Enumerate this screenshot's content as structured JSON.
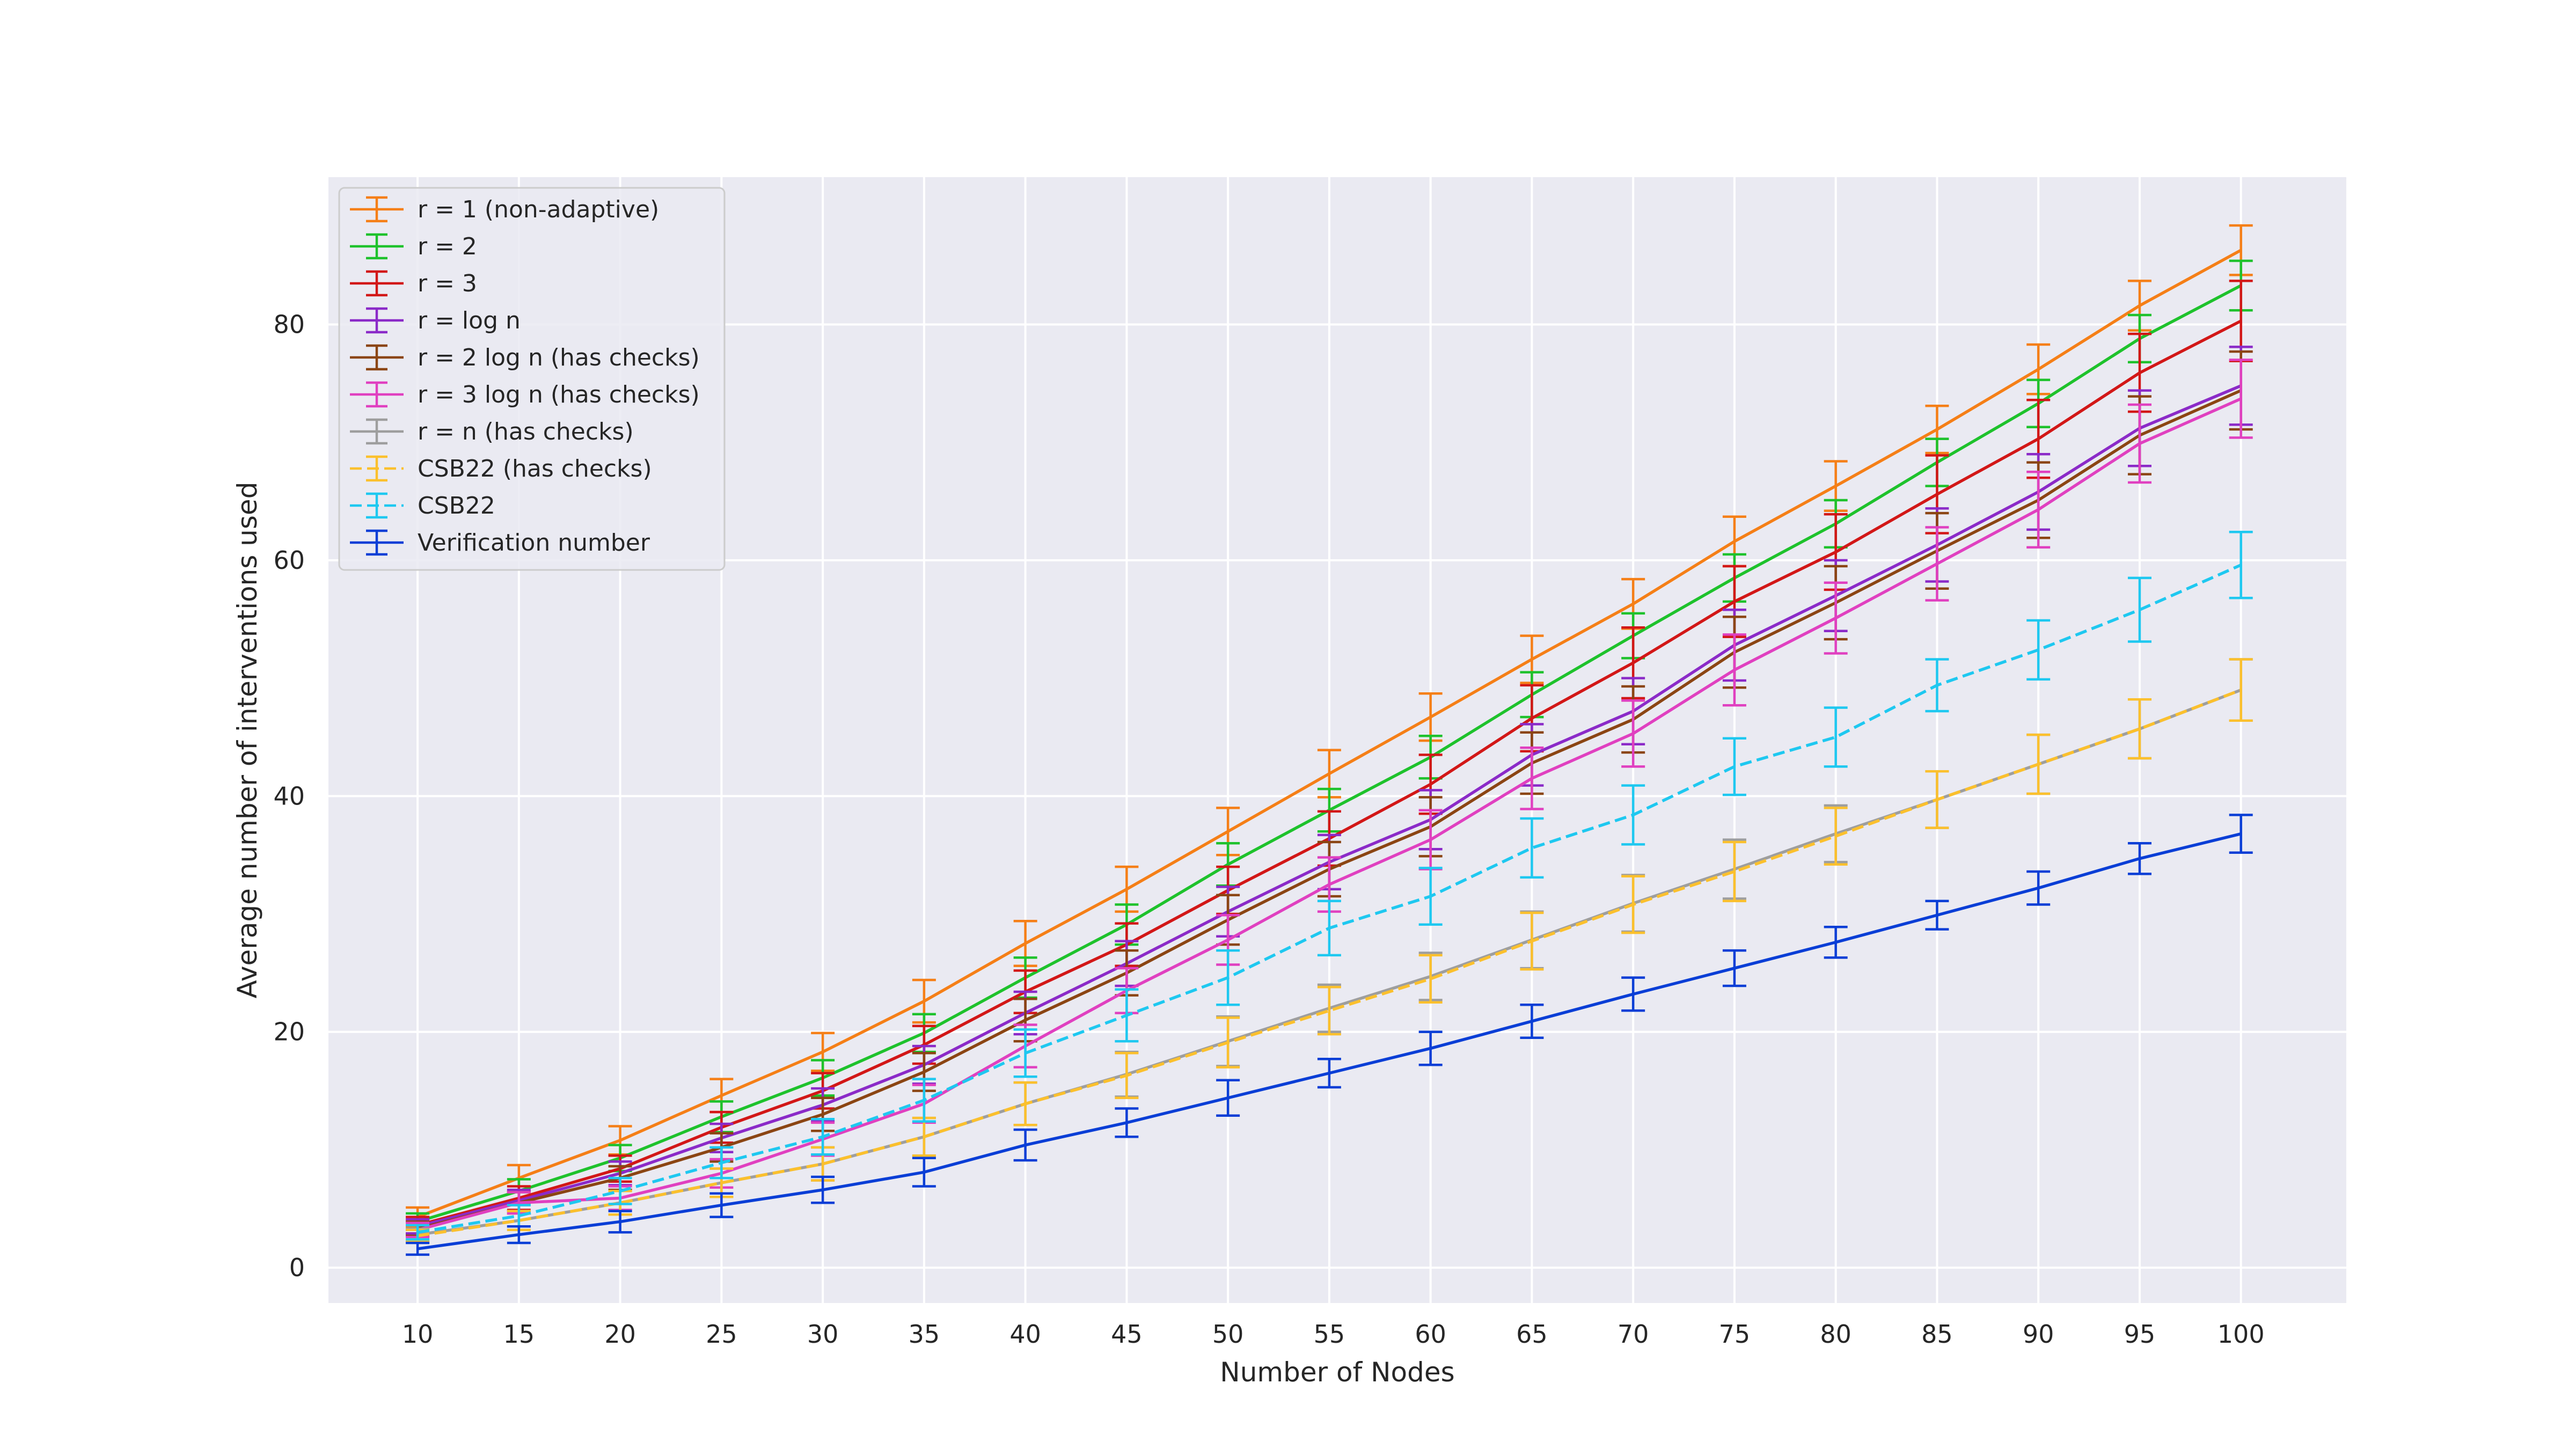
{
  "chart_data": {
    "type": "line",
    "title": "",
    "xlabel": "Number of Nodes",
    "ylabel": "Average number of interventions used",
    "x": [
      10,
      15,
      20,
      25,
      30,
      35,
      40,
      45,
      50,
      55,
      60,
      65,
      70,
      75,
      80,
      85,
      90,
      95,
      100
    ],
    "xlim": [
      5.6,
      105.2
    ],
    "ylim": [
      -3,
      92.5
    ],
    "yticks": [
      0,
      20,
      40,
      60,
      80
    ],
    "grid": true,
    "legend_position": "upper-left",
    "series": [
      {
        "name": "r = 1 (non-adaptive)",
        "color": "#f57f17",
        "dash": "solid",
        "values": [
          4.3,
          7.6,
          10.8,
          14.6,
          18.3,
          22.6,
          27.5,
          32.1,
          37.0,
          41.9,
          46.7,
          51.6,
          56.3,
          61.6,
          66.3,
          71.1,
          76.2,
          81.6,
          86.3
        ],
        "errors": [
          0.8,
          1.1,
          1.2,
          1.4,
          1.6,
          1.8,
          1.9,
          1.9,
          2.0,
          2.0,
          2.0,
          2.0,
          2.1,
          2.1,
          2.1,
          2.0,
          2.1,
          2.1,
          2.1
        ]
      },
      {
        "name": "r = 2",
        "color": "#1ec22c",
        "dash": "solid",
        "values": [
          3.9,
          6.5,
          9.3,
          12.8,
          16.1,
          19.9,
          24.6,
          29.1,
          34.2,
          38.8,
          43.3,
          48.6,
          53.6,
          58.5,
          63.1,
          68.3,
          73.3,
          78.8,
          83.3
        ],
        "errors": [
          0.7,
          1.0,
          1.1,
          1.3,
          1.5,
          1.6,
          1.7,
          1.7,
          1.8,
          1.8,
          1.8,
          1.9,
          1.9,
          2.0,
          2.0,
          2.0,
          2.0,
          2.0,
          2.1
        ]
      },
      {
        "name": "r = 3",
        "color": "#d21717",
        "dash": "solid",
        "values": [
          3.6,
          5.9,
          8.4,
          11.9,
          15.0,
          18.9,
          23.4,
          27.4,
          32.0,
          36.4,
          41.0,
          46.6,
          51.3,
          56.5,
          60.7,
          65.6,
          70.3,
          75.9,
          80.3
        ],
        "errors": [
          0.7,
          1.0,
          1.1,
          1.3,
          1.5,
          1.6,
          1.8,
          1.8,
          2.0,
          2.3,
          2.5,
          2.8,
          3.0,
          3.0,
          3.2,
          3.3,
          3.3,
          3.3,
          3.4
        ]
      },
      {
        "name": "r = log n",
        "color": "#8b2ac8",
        "dash": "solid",
        "values": [
          3.5,
          5.7,
          8.0,
          11.0,
          13.8,
          17.2,
          21.6,
          25.8,
          30.2,
          34.4,
          38.0,
          43.5,
          47.2,
          52.8,
          57.0,
          61.3,
          65.8,
          71.2,
          74.8
        ],
        "errors": [
          0.6,
          0.9,
          1.0,
          1.2,
          1.4,
          1.6,
          1.8,
          1.9,
          2.1,
          2.3,
          2.5,
          2.6,
          2.8,
          3.0,
          3.0,
          3.1,
          3.2,
          3.2,
          3.3
        ]
      },
      {
        "name": "r = 2 log n (has checks)",
        "color": "#8b4513",
        "dash": "solid",
        "values": [
          3.3,
          5.5,
          7.6,
          10.2,
          13.0,
          16.6,
          21.0,
          25.0,
          29.5,
          33.8,
          37.4,
          42.8,
          46.5,
          52.2,
          56.4,
          60.8,
          65.1,
          70.6,
          74.4
        ],
        "errors": [
          0.6,
          0.9,
          1.0,
          1.2,
          1.4,
          1.6,
          1.8,
          1.9,
          2.1,
          2.3,
          2.5,
          2.6,
          2.8,
          3.0,
          3.1,
          3.2,
          3.2,
          3.3,
          3.3
        ]
      },
      {
        "name": "r = 3 log n (has checks)",
        "color": "#e040c0",
        "dash": "solid",
        "values": [
          3.2,
          5.5,
          5.9,
          8.0,
          10.9,
          13.9,
          18.8,
          23.5,
          27.8,
          32.5,
          36.3,
          41.5,
          45.3,
          50.7,
          55.1,
          59.7,
          64.3,
          69.9,
          73.7
        ],
        "errors": [
          0.6,
          0.9,
          1.0,
          1.2,
          1.4,
          1.6,
          1.8,
          1.9,
          2.1,
          2.3,
          2.5,
          2.6,
          2.8,
          3.0,
          3.0,
          3.1,
          3.2,
          3.3,
          3.3
        ]
      },
      {
        "name": "r = n (has checks)",
        "color": "#9e9e9e",
        "dash": "solid",
        "values": [
          2.8,
          4.0,
          5.5,
          7.2,
          8.8,
          11.1,
          13.9,
          16.4,
          19.2,
          22.0,
          24.7,
          27.8,
          30.9,
          33.8,
          36.8,
          39.7,
          42.7,
          45.7,
          49.0
        ],
        "errors": [
          0.5,
          0.8,
          1.0,
          1.2,
          1.4,
          1.6,
          1.8,
          1.9,
          2.1,
          2.0,
          2.0,
          2.4,
          2.4,
          2.5,
          2.4,
          2.4,
          2.5,
          2.5,
          2.6
        ]
      },
      {
        "name": "CSB22 (has checks)",
        "color": "#fbc02d",
        "dash": "dashed",
        "values": [
          2.7,
          4.0,
          5.5,
          7.2,
          8.8,
          11.1,
          13.9,
          16.3,
          19.1,
          21.8,
          24.5,
          27.7,
          30.8,
          33.6,
          36.6,
          39.7,
          42.7,
          45.7,
          49.0
        ],
        "errors": [
          0.5,
          0.8,
          1.0,
          1.2,
          1.4,
          1.6,
          1.8,
          1.9,
          2.1,
          2.0,
          2.0,
          2.4,
          2.4,
          2.5,
          2.4,
          2.4,
          2.5,
          2.5,
          2.6
        ]
      },
      {
        "name": "CSB22",
        "color": "#1ec8f0",
        "dash": "dashed",
        "values": [
          3.0,
          4.4,
          6.5,
          8.9,
          11.1,
          14.2,
          18.2,
          21.4,
          24.6,
          28.8,
          31.5,
          35.6,
          38.4,
          42.5,
          45.0,
          49.4,
          52.4,
          55.8,
          59.6
        ],
        "errors": [
          0.6,
          0.9,
          1.1,
          1.3,
          1.5,
          1.8,
          2.0,
          2.2,
          2.3,
          2.3,
          2.4,
          2.5,
          2.5,
          2.4,
          2.5,
          2.2,
          2.5,
          2.7,
          2.8
        ]
      },
      {
        "name": "Verification number",
        "color": "#0a3ed6",
        "dash": "solid",
        "values": [
          1.6,
          2.8,
          3.9,
          5.3,
          6.6,
          8.1,
          10.4,
          12.3,
          14.4,
          16.5,
          18.6,
          20.9,
          23.2,
          25.4,
          27.6,
          29.9,
          32.2,
          34.7,
          36.8
        ],
        "errors": [
          0.5,
          0.7,
          0.9,
          1.0,
          1.1,
          1.2,
          1.3,
          1.2,
          1.5,
          1.2,
          1.4,
          1.4,
          1.4,
          1.5,
          1.3,
          1.2,
          1.4,
          1.3,
          1.6
        ]
      }
    ]
  }
}
